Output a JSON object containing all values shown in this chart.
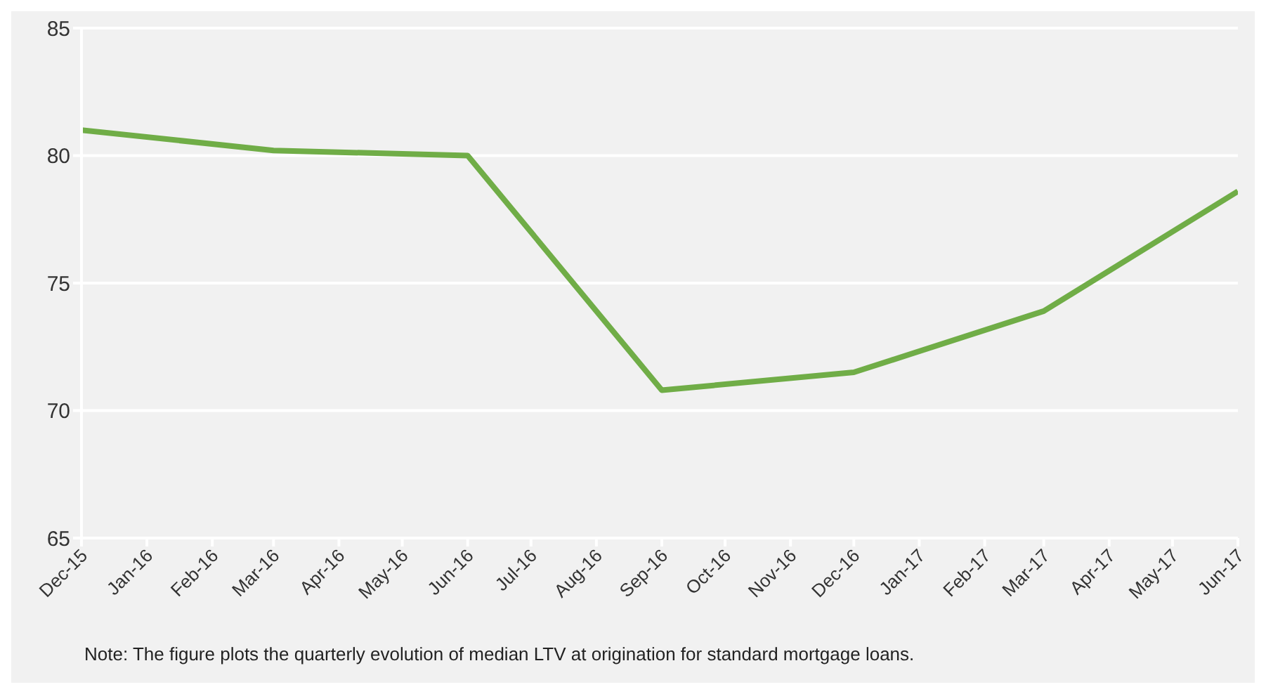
{
  "chart_data": {
    "type": "line",
    "x": [
      "2015-12",
      "2016-03",
      "2016-06",
      "2016-09",
      "2016-12",
      "2017-03",
      "2017-06"
    ],
    "series": [
      {
        "color": "#70ad47",
        "values": [
          81,
          80.2,
          80,
          70.8,
          71.5,
          73.9,
          78.6
        ]
      }
    ],
    "xlim": [
      "2015-12",
      "2017-06"
    ],
    "xticks": [
      {
        "value": "2015-12",
        "label": "Dec-15"
      },
      {
        "value": "2016-01",
        "label": "Jan-16"
      },
      {
        "value": "2016-02",
        "label": "Feb-16"
      },
      {
        "value": "2016-03",
        "label": "Mar-16"
      },
      {
        "value": "2016-04",
        "label": "Apr-16"
      },
      {
        "value": "2016-05",
        "label": "May-16"
      },
      {
        "value": "2016-06",
        "label": "Jun-16"
      },
      {
        "value": "2016-07",
        "label": "Jul-16"
      },
      {
        "value": "2016-08",
        "label": "Aug-16"
      },
      {
        "value": "2016-09",
        "label": "Sep-16"
      },
      {
        "value": "2016-10",
        "label": "Oct-16"
      },
      {
        "value": "2016-11",
        "label": "Nov-16"
      },
      {
        "value": "2016-12",
        "label": "Dec-16"
      },
      {
        "value": "2017-01",
        "label": "Jan-17"
      },
      {
        "value": "2017-02",
        "label": "Feb-17"
      },
      {
        "value": "2017-03",
        "label": "Mar-17"
      },
      {
        "value": "2017-04",
        "label": "Apr-17"
      },
      {
        "value": "2017-05",
        "label": "May-17"
      },
      {
        "value": "2017-06",
        "label": "Jun-17"
      }
    ],
    "ylim": [
      65,
      85
    ],
    "yticks": [
      65,
      70,
      75,
      80,
      85
    ],
    "grid": "y",
    "marker": "none",
    "line_style": "solid",
    "annotations": [
      "Note: The figure plots the quarterly evolution of median LTV at origination for standard mortgage loans."
    ]
  }
}
